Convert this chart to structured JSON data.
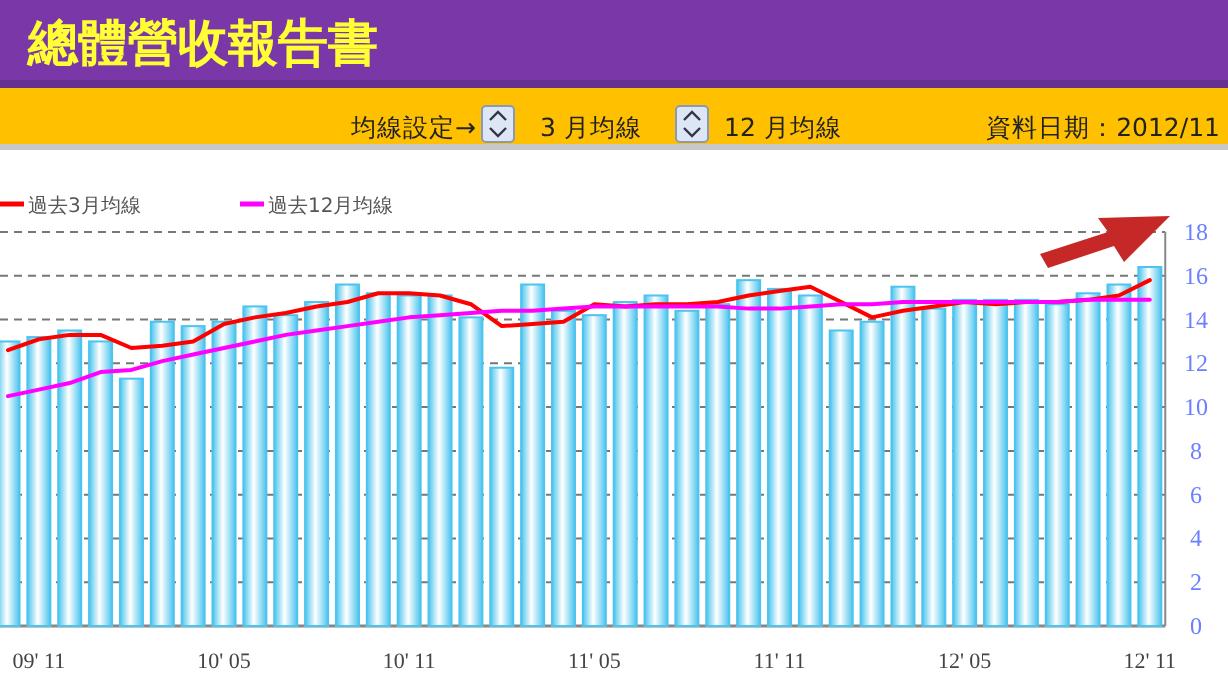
{
  "chart_data": {
    "type": "bar",
    "title": "總體營收報告書",
    "annotations": [
      "均線設定→",
      "3 月均線",
      "12 月均線",
      "資料日期：2012/11"
    ],
    "categories": [
      null,
      "09' 11",
      null,
      null,
      null,
      null,
      null,
      "10' 05",
      null,
      null,
      null,
      null,
      null,
      "10' 11",
      null,
      null,
      null,
      null,
      null,
      "11' 05",
      null,
      null,
      null,
      null,
      null,
      "11' 11",
      null,
      null,
      null,
      null,
      null,
      "12' 05",
      null,
      null,
      null,
      null,
      null,
      "12' 11"
    ],
    "series": [
      {
        "color": "#4cc4ee",
        "values": [
          13.0,
          13.2,
          13.5,
          13.0,
          11.3,
          13.9,
          13.7,
          13.9,
          14.6,
          14.2,
          14.8,
          15.6,
          15.2,
          15.1,
          15.1,
          14.1,
          11.8,
          15.6,
          14.4,
          14.2,
          14.8,
          15.1,
          14.4,
          14.7,
          15.8,
          15.4,
          15.1,
          13.5,
          13.9,
          15.5,
          14.5,
          14.9,
          14.9,
          14.9,
          14.7,
          15.2,
          15.6,
          16.4
        ]
      },
      {
        "type": "line",
        "name": "過去3月均線",
        "color": "#ff0000",
        "values": [
          12.6,
          13.1,
          13.3,
          13.3,
          12.7,
          12.8,
          13.0,
          13.8,
          14.1,
          14.3,
          14.6,
          14.8,
          15.2,
          15.2,
          15.1,
          14.7,
          13.7,
          13.8,
          13.9,
          14.7,
          14.6,
          14.7,
          14.7,
          14.8,
          15.1,
          15.3,
          15.5,
          14.8,
          14.1,
          14.4,
          14.6,
          14.8,
          14.7,
          14.8,
          14.8,
          14.9,
          15.1,
          15.8
        ]
      },
      {
        "type": "line",
        "name": "過去12月均線",
        "color": "#ff00ff",
        "values": [
          10.5,
          10.8,
          11.1,
          11.6,
          11.7,
          12.1,
          12.4,
          12.7,
          13.0,
          13.3,
          13.5,
          13.7,
          13.9,
          14.1,
          14.2,
          14.3,
          14.4,
          14.4,
          14.5,
          14.6,
          14.6,
          14.6,
          14.6,
          14.6,
          14.5,
          14.5,
          14.6,
          14.7,
          14.7,
          14.8,
          14.8,
          14.8,
          14.8,
          14.8,
          14.8,
          14.9,
          14.9,
          14.9
        ]
      }
    ],
    "ylim": [
      0,
      18
    ],
    "yticks": [
      0,
      2,
      4,
      6,
      8,
      10,
      12,
      14,
      16,
      18
    ],
    "grid": "y",
    "legend": "top left"
  }
}
